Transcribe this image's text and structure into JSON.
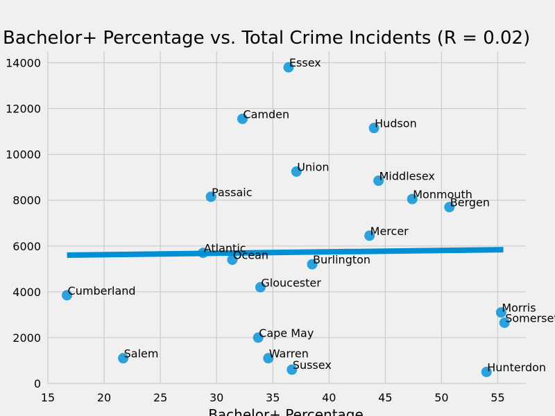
{
  "chart_data": {
    "type": "scatter",
    "title": "Bachelor+ Percentage vs. Total Crime Incidents (R = 0.02)",
    "xlabel": "Bachelor+ Percentage",
    "ylabel": "",
    "xlim": [
      15,
      57.5
    ],
    "ylim": [
      0,
      14500
    ],
    "xticks": [
      15,
      20,
      25,
      30,
      35,
      40,
      45,
      50,
      55
    ],
    "yticks": [
      0,
      2000,
      4000,
      6000,
      8000,
      10000,
      12000,
      14000
    ],
    "grid": true,
    "point_color": "#008fd5",
    "line_color": "#008fd5",
    "trendline": {
      "x": [
        16.7,
        55.5
      ],
      "y": [
        5600,
        5840
      ]
    },
    "points": [
      {
        "label": "Essex",
        "x": 36.4,
        "y": 13800
      },
      {
        "label": "Camden",
        "x": 32.3,
        "y": 11550
      },
      {
        "label": "Hudson",
        "x": 44.0,
        "y": 11150
      },
      {
        "label": "Union",
        "x": 37.1,
        "y": 9250
      },
      {
        "label": "Middlesex",
        "x": 44.4,
        "y": 8850
      },
      {
        "label": "Passaic",
        "x": 29.5,
        "y": 8150
      },
      {
        "label": "Monmouth",
        "x": 47.4,
        "y": 8050
      },
      {
        "label": "Bergen",
        "x": 50.7,
        "y": 7700
      },
      {
        "label": "Mercer",
        "x": 43.6,
        "y": 6450
      },
      {
        "label": "Atlantic",
        "x": 28.8,
        "y": 5700
      },
      {
        "label": "Ocean",
        "x": 31.4,
        "y": 5400
      },
      {
        "label": "Burlington",
        "x": 38.5,
        "y": 5200
      },
      {
        "label": "Gloucester",
        "x": 33.9,
        "y": 4200
      },
      {
        "label": "Cumberland",
        "x": 16.7,
        "y": 3850
      },
      {
        "label": "Morris",
        "x": 55.3,
        "y": 3100
      },
      {
        "label": "Somerset",
        "x": 55.6,
        "y": 2650
      },
      {
        "label": "Cape May",
        "x": 33.7,
        "y": 2000
      },
      {
        "label": "Salem",
        "x": 21.7,
        "y": 1100
      },
      {
        "label": "Warren",
        "x": 34.6,
        "y": 1100
      },
      {
        "label": "Sussex",
        "x": 36.7,
        "y": 600
      },
      {
        "label": "Hunterdon",
        "x": 54.0,
        "y": 500
      }
    ]
  }
}
